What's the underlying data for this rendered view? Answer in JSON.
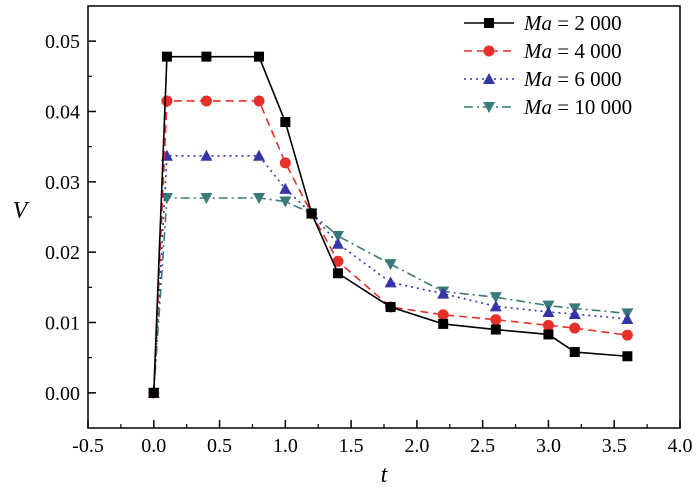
{
  "chart_data": {
    "type": "line",
    "xlabel": "t",
    "ylabel": "V",
    "xlim": [
      -0.5,
      4.0
    ],
    "ylim": [
      -0.005,
      0.055
    ],
    "xticks": [
      "-0.5",
      "0.0",
      "0.5",
      "1.0",
      "1.5",
      "2.0",
      "2.5",
      "3.0",
      "3.5",
      "4.0"
    ],
    "yticks": [
      "0.00",
      "0.01",
      "0.02",
      "0.03",
      "0.04",
      "0.05"
    ],
    "grid": false,
    "legend_position": "top-right",
    "series": [
      {
        "name": "Ma = 2 000",
        "name_var": "Ma",
        "name_value": "= 2 000",
        "color": "#000000",
        "marker": "square",
        "line_style": "solid",
        "x": [
          0.0,
          0.1,
          0.4,
          0.8,
          1.0,
          1.2,
          1.4,
          1.8,
          2.2,
          2.6,
          3.0,
          3.2,
          3.6
        ],
        "y": [
          0.0,
          0.0478,
          0.0478,
          0.0478,
          0.0385,
          0.0255,
          0.017,
          0.0122,
          0.0098,
          0.009,
          0.0083,
          0.0058,
          0.0052
        ]
      },
      {
        "name": "Ma = 4 000",
        "name_var": "Ma",
        "name_value": "= 4 000",
        "color": "#e8302a",
        "marker": "circle",
        "line_style": "dashed",
        "x": [
          0.0,
          0.1,
          0.4,
          0.8,
          1.0,
          1.2,
          1.4,
          1.8,
          2.2,
          2.6,
          3.0,
          3.2,
          3.6
        ],
        "y": [
          0.0,
          0.0415,
          0.0415,
          0.0415,
          0.0327,
          0.0255,
          0.0187,
          0.0122,
          0.0111,
          0.0104,
          0.0096,
          0.0092,
          0.0082
        ]
      },
      {
        "name": "Ma = 6 000",
        "name_var": "Ma",
        "name_value": "= 6 000",
        "color": "#3535a8",
        "marker": "triangle-up",
        "line_style": "dotted",
        "x": [
          0.0,
          0.1,
          0.4,
          0.8,
          1.0,
          1.2,
          1.4,
          1.8,
          2.2,
          2.6,
          3.0,
          3.2,
          3.6
        ],
        "y": [
          0.0,
          0.0337,
          0.0337,
          0.0337,
          0.029,
          0.0255,
          0.0212,
          0.0157,
          0.0141,
          0.0123,
          0.0115,
          0.0112,
          0.0105
        ]
      },
      {
        "name": "Ma = 10 000",
        "name_var": "Ma",
        "name_value": "= 10 000",
        "color": "#3a7a78",
        "marker": "triangle-down",
        "line_style": "dash-dot",
        "x": [
          0.0,
          0.1,
          0.4,
          0.8,
          1.0,
          1.2,
          1.4,
          1.8,
          2.2,
          2.6,
          3.0,
          3.2,
          3.6
        ],
        "y": [
          0.0,
          0.0277,
          0.0277,
          0.0277,
          0.0272,
          0.0255,
          0.0223,
          0.0183,
          0.0144,
          0.0136,
          0.0124,
          0.012,
          0.0113
        ]
      }
    ]
  }
}
